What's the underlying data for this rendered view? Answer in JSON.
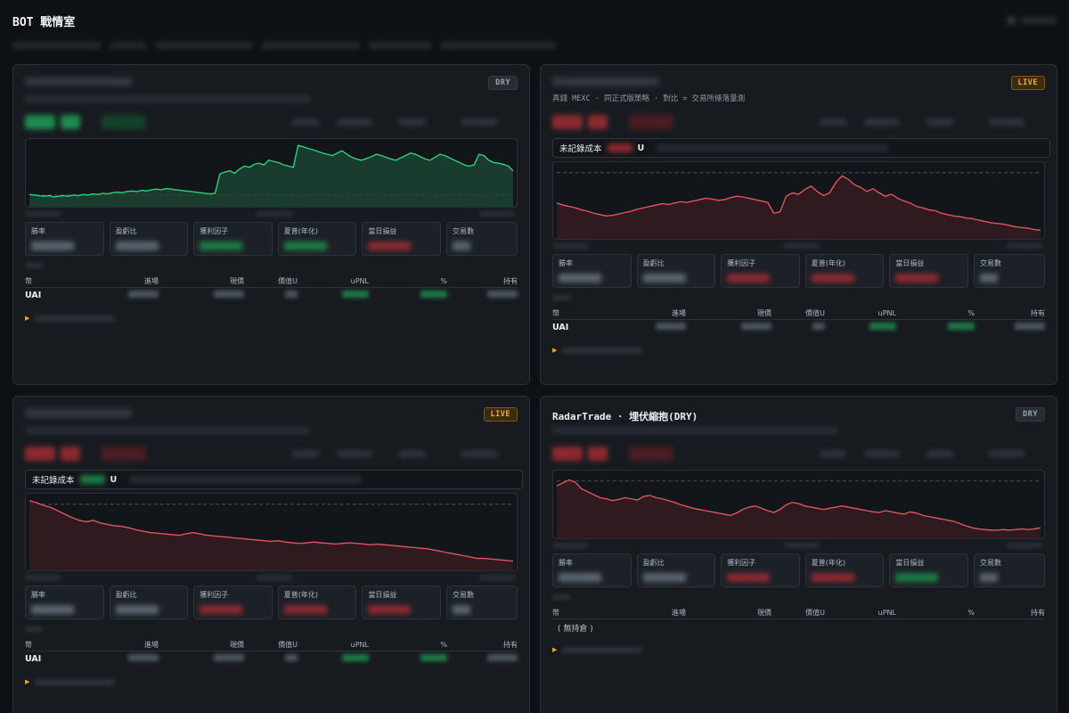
{
  "app": {
    "title": "BOT 戰情室"
  },
  "table_headers": [
    "幣",
    "進場",
    "現價",
    "價值U",
    "uPNL",
    "%",
    "持有"
  ],
  "metric_labels": [
    "勝率",
    "盈虧比",
    "獲利因子",
    "夏普(年化)",
    "當日損益",
    "交易數"
  ],
  "cards": [
    {
      "badge": "DRY",
      "badge_kind": "dry",
      "chart_color": "#2fcf7a",
      "chart_fill": "#1d4a35",
      "chart_series": [
        0.12,
        0.11,
        0.1,
        0.09,
        0.1,
        0.08,
        0.09,
        0.1,
        0.09,
        0.11,
        0.1,
        0.12,
        0.11,
        0.13,
        0.12,
        0.14,
        0.13,
        0.15,
        0.16,
        0.15,
        0.17,
        0.18,
        0.17,
        0.19,
        0.18,
        0.2,
        0.21,
        0.2,
        0.22,
        0.21,
        0.2,
        0.19,
        0.18,
        0.17,
        0.16,
        0.15,
        0.14,
        0.13,
        0.14,
        0.47,
        0.5,
        0.52,
        0.48,
        0.55,
        0.6,
        0.58,
        0.63,
        0.65,
        0.62,
        0.7,
        0.68,
        0.66,
        0.62,
        0.6,
        0.58,
        0.95,
        0.93,
        0.9,
        0.88,
        0.85,
        0.82,
        0.8,
        0.78,
        0.82,
        0.86,
        0.8,
        0.75,
        0.72,
        0.7,
        0.73,
        0.76,
        0.8,
        0.78,
        0.75,
        0.72,
        0.7,
        0.74,
        0.78,
        0.82,
        0.8,
        0.76,
        0.72,
        0.7,
        0.75,
        0.8,
        0.78,
        0.74,
        0.7,
        0.66,
        0.62,
        0.6,
        0.62,
        0.8,
        0.78,
        0.7,
        0.66,
        0.65,
        0.63,
        0.6,
        0.52
      ],
      "has_cost": false,
      "metric_colors": [
        "neutral",
        "neutral",
        "green",
        "green",
        "red",
        "neutral"
      ],
      "positions": [
        {
          "symbol": "UAI"
        }
      ],
      "empty_text": ""
    },
    {
      "badge": "LIVE",
      "badge_kind": "live",
      "subtitle": "真錢 MEXC · 同正式版策略 · 對比 = 交易所條落量測",
      "chart_color": "#e05560",
      "chart_fill": "#3a1c22",
      "chart_series": [
        0.45,
        0.42,
        0.4,
        0.38,
        0.35,
        0.33,
        0.3,
        0.28,
        0.26,
        0.27,
        0.29,
        0.31,
        0.33,
        0.36,
        0.38,
        0.4,
        0.42,
        0.44,
        0.43,
        0.45,
        0.47,
        0.46,
        0.48,
        0.5,
        0.52,
        0.51,
        0.49,
        0.5,
        0.53,
        0.55,
        0.54,
        0.52,
        0.5,
        0.48,
        0.46,
        0.3,
        0.32,
        0.55,
        0.6,
        0.58,
        0.65,
        0.7,
        0.62,
        0.56,
        0.6,
        0.75,
        0.85,
        0.8,
        0.72,
        0.68,
        0.62,
        0.66,
        0.6,
        0.55,
        0.58,
        0.52,
        0.48,
        0.45,
        0.4,
        0.38,
        0.35,
        0.34,
        0.3,
        0.28,
        0.26,
        0.25,
        0.23,
        0.22,
        0.2,
        0.18,
        0.16,
        0.15,
        0.14,
        0.12,
        0.1,
        0.09,
        0.08,
        0.06,
        0.05
      ],
      "has_cost": true,
      "cost_label": "未記錄成本",
      "cost_unit": "U",
      "metric_colors": [
        "neutral",
        "neutral",
        "red",
        "red",
        "red",
        "neutral"
      ],
      "positions": [
        {
          "symbol": "UAI"
        }
      ],
      "empty_text": ""
    },
    {
      "badge": "LIVE",
      "badge_kind": "live",
      "chart_color": "#e05560",
      "chart_fill": "#3a1c22",
      "chart_series": [
        0.95,
        0.92,
        0.88,
        0.85,
        0.8,
        0.75,
        0.7,
        0.66,
        0.64,
        0.66,
        0.62,
        0.6,
        0.58,
        0.57,
        0.55,
        0.52,
        0.5,
        0.48,
        0.47,
        0.46,
        0.45,
        0.44,
        0.46,
        0.48,
        0.46,
        0.44,
        0.43,
        0.42,
        0.41,
        0.4,
        0.39,
        0.38,
        0.37,
        0.36,
        0.35,
        0.36,
        0.34,
        0.33,
        0.32,
        0.33,
        0.34,
        0.33,
        0.32,
        0.31,
        0.32,
        0.33,
        0.32,
        0.31,
        0.3,
        0.31,
        0.3,
        0.29,
        0.28,
        0.27,
        0.26,
        0.25,
        0.24,
        0.22,
        0.2,
        0.18,
        0.16,
        0.14,
        0.12,
        0.1,
        0.1,
        0.09,
        0.08,
        0.07,
        0.06
      ],
      "has_cost": true,
      "cost_label": "未記錄成本",
      "cost_unit": "U",
      "metric_colors": [
        "neutral",
        "neutral",
        "red",
        "red",
        "red",
        "neutral"
      ],
      "positions": [
        {
          "symbol": "UAI"
        }
      ],
      "empty_text": ""
    },
    {
      "title": "RadarTrade · 埋伏縮抱(DRY)",
      "badge": "DRY",
      "badge_kind": "dry",
      "chart_color": "#e05560",
      "chart_fill": "#3a1c22",
      "chart_series": [
        0.8,
        0.85,
        0.9,
        0.86,
        0.75,
        0.7,
        0.65,
        0.6,
        0.58,
        0.55,
        0.57,
        0.6,
        0.58,
        0.56,
        0.62,
        0.64,
        0.6,
        0.58,
        0.55,
        0.52,
        0.48,
        0.45,
        0.42,
        0.4,
        0.38,
        0.36,
        0.34,
        0.32,
        0.3,
        0.34,
        0.4,
        0.44,
        0.46,
        0.42,
        0.38,
        0.35,
        0.4,
        0.48,
        0.52,
        0.5,
        0.46,
        0.44,
        0.42,
        0.4,
        0.42,
        0.44,
        0.46,
        0.44,
        0.42,
        0.4,
        0.38,
        0.36,
        0.35,
        0.38,
        0.36,
        0.34,
        0.32,
        0.36,
        0.34,
        0.3,
        0.28,
        0.26,
        0.24,
        0.22,
        0.2,
        0.16,
        0.12,
        0.09,
        0.07,
        0.06,
        0.05,
        0.05,
        0.06,
        0.05,
        0.06,
        0.07,
        0.06,
        0.07,
        0.09
      ],
      "has_cost": false,
      "metric_colors": [
        "neutral",
        "neutral",
        "red",
        "red",
        "green",
        "neutral"
      ],
      "positions": [],
      "empty_text": "( 無持倉 )"
    }
  ]
}
